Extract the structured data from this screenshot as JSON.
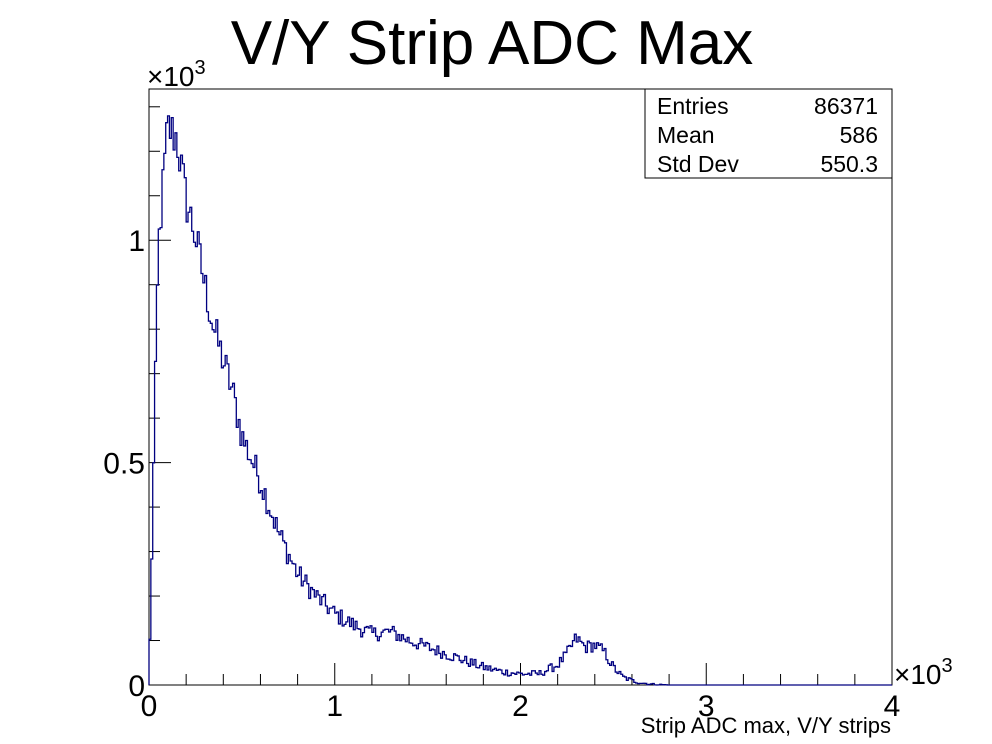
{
  "chart_data": {
    "type": "bar",
    "title": "V/Y Strip ADC Max",
    "xlabel": "Strip ADC max, V/Y strips",
    "ylabel": "",
    "xlim": [
      0,
      4000
    ],
    "ylim": [
      0,
      1340
    ],
    "x_multiplier": "×10",
    "x_multiplier_exp": "3",
    "y_multiplier": "×10",
    "y_multiplier_exp": "3",
    "x_ticks": [
      {
        "value": 0,
        "label": "0"
      },
      {
        "value": 1000,
        "label": "1"
      },
      {
        "value": 2000,
        "label": "2"
      },
      {
        "value": 3000,
        "label": "3"
      },
      {
        "value": 4000,
        "label": "4"
      }
    ],
    "y_ticks": [
      {
        "value": 0,
        "label": "0"
      },
      {
        "value": 500,
        "label": "0.5"
      },
      {
        "value": 1000,
        "label": "1"
      }
    ],
    "line_color": "#000080",
    "x": [
      0,
      50,
      100,
      150,
      200,
      250,
      300,
      350,
      400,
      450,
      500,
      600,
      700,
      800,
      900,
      1000,
      1100,
      1200,
      1300,
      1400,
      1500,
      1600,
      1700,
      1800,
      1900,
      2000,
      2100,
      2200,
      2250,
      2300,
      2350,
      2400,
      2450,
      2500,
      2550,
      2600,
      2650,
      2700,
      2800,
      3000,
      4000
    ],
    "values": [
      0,
      980,
      1255,
      1230,
      1090,
      1010,
      900,
      800,
      730,
      660,
      560,
      460,
      340,
      250,
      200,
      160,
      135,
      115,
      120,
      100,
      85,
      70,
      55,
      40,
      30,
      25,
      25,
      45,
      70,
      105,
      85,
      90,
      75,
      40,
      18,
      10,
      5,
      2,
      0,
      0,
      0
    ],
    "grid": false,
    "stats": {
      "rows": [
        {
          "label": "Entries",
          "value": "86371"
        },
        {
          "label": "Mean",
          "value": "586"
        },
        {
          "label": "Std Dev",
          "value": "550.3"
        }
      ]
    }
  }
}
